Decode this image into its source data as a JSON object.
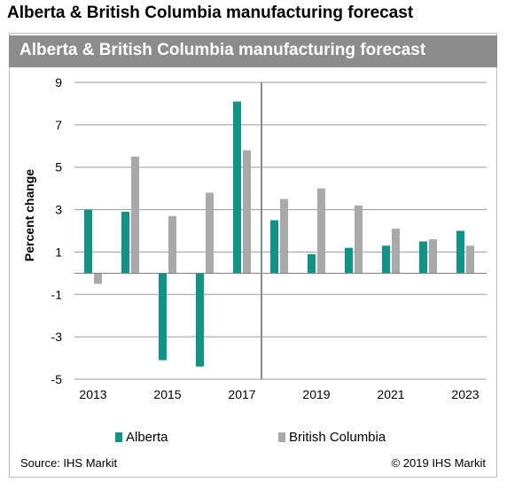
{
  "page_title": "Alberta & British Columbia manufacturing forecast",
  "banner_title": "Alberta & British Columbia manufacturing forecast",
  "source": "Source: IHS Markit",
  "copyright": "© 2019 IHS Markit",
  "colors": {
    "alberta": "#0f9488",
    "bc": "#a9a9a9",
    "banner": "#8c8c8c",
    "grid": "#9a9a9a"
  },
  "chart_data": {
    "type": "bar",
    "categories": [
      "2013",
      "2014",
      "2015",
      "2016",
      "2017",
      "2018",
      "2019",
      "2020",
      "2021",
      "2022",
      "2023"
    ],
    "x_tick_labels": [
      "2013",
      "2015",
      "2017",
      "2019",
      "2021",
      "2023"
    ],
    "series": [
      {
        "name": "Alberta",
        "values": [
          3.0,
          2.9,
          -4.1,
          -4.4,
          8.1,
          2.5,
          0.9,
          1.2,
          1.3,
          1.5,
          2.0
        ]
      },
      {
        "name": "British Columbia",
        "values": [
          -0.5,
          5.5,
          2.7,
          3.8,
          5.8,
          3.5,
          4.0,
          3.2,
          2.1,
          1.6,
          1.3
        ]
      }
    ],
    "ylabel": "Percent change",
    "ylim": [
      -5,
      9
    ],
    "yticks": [
      9,
      7,
      5,
      3,
      1,
      -1,
      -3,
      -5
    ],
    "forecast_divider_after": "2017",
    "grid": true,
    "legend_position": "bottom"
  }
}
